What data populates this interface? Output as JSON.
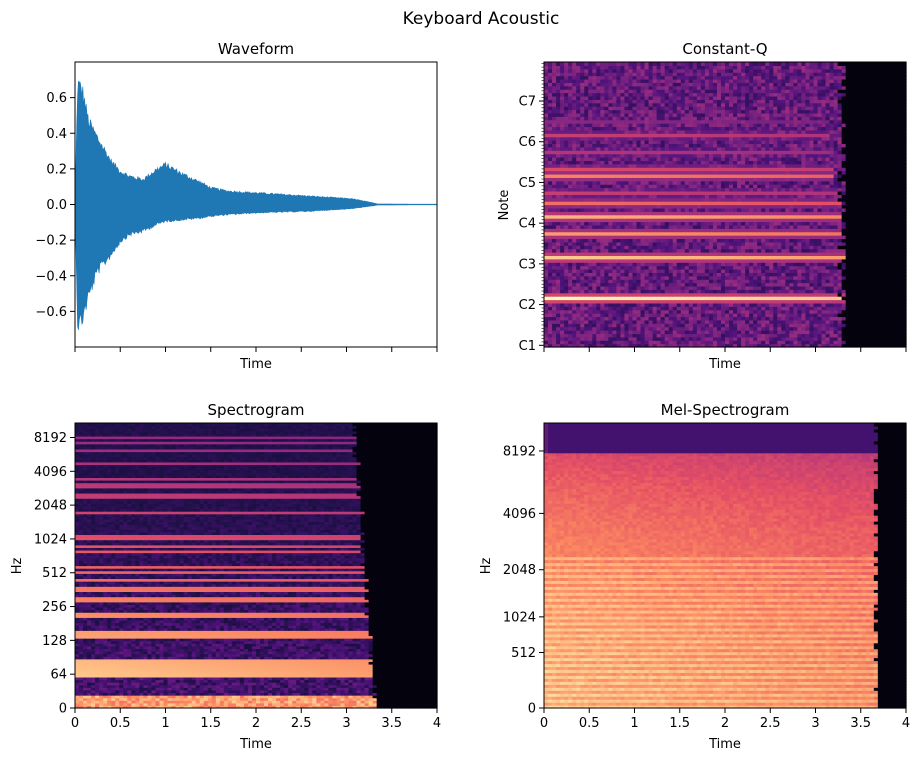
{
  "suptitle": "Keyboard Acoustic",
  "colors": {
    "waveform": "#1f77b4",
    "colormap": "magma",
    "background": "#ffffff",
    "axis": "#000000"
  },
  "chart_data": [
    {
      "id": "waveform",
      "type": "area",
      "title": "Waveform",
      "xlabel": "Time",
      "ylabel": "",
      "xlim": [
        0,
        4
      ],
      "ylim": [
        -0.8,
        0.8
      ],
      "yticks": [
        -0.6,
        -0.4,
        -0.2,
        0.0,
        0.2,
        0.4,
        0.6
      ],
      "ytick_labels": [
        "−0.6",
        "−0.4",
        "−0.2",
        "0.0",
        "0.2",
        "0.4",
        "0.6"
      ],
      "xticks": [
        0,
        0.5,
        1,
        1.5,
        2,
        2.5,
        3,
        3.5,
        4
      ],
      "xtick_labels_shown": false,
      "envelope": {
        "time": [
          0,
          0.03,
          0.08,
          0.15,
          0.25,
          0.4,
          0.5,
          0.6,
          0.75,
          0.9,
          1.0,
          1.2,
          1.4,
          1.5,
          1.7,
          2.0,
          2.3,
          2.6,
          2.9,
          3.05,
          3.2,
          3.35,
          4.0
        ],
        "upper": [
          0.0,
          0.73,
          0.69,
          0.5,
          0.4,
          0.26,
          0.2,
          0.17,
          0.15,
          0.21,
          0.24,
          0.18,
          0.13,
          0.1,
          0.08,
          0.07,
          0.06,
          0.05,
          0.04,
          0.035,
          0.02,
          0.003,
          0.0
        ],
        "lower": [
          0.0,
          -0.73,
          -0.69,
          -0.55,
          -0.4,
          -0.3,
          -0.22,
          -0.18,
          -0.16,
          -0.12,
          -0.1,
          -0.09,
          -0.08,
          -0.07,
          -0.06,
          -0.05,
          -0.045,
          -0.04,
          -0.03,
          -0.025,
          -0.015,
          -0.003,
          0.0
        ]
      }
    },
    {
      "id": "cqt",
      "type": "heatmap",
      "title": "Constant-Q",
      "xlabel": "Time",
      "ylabel": "Note",
      "xlim": [
        0,
        4
      ],
      "yticks": [
        "C1",
        "C2",
        "C3",
        "C4",
        "C5",
        "C6",
        "C7"
      ],
      "ytick_midi": [
        24,
        36,
        48,
        60,
        72,
        84,
        96
      ],
      "ylim_midi": [
        23.5,
        107.5
      ],
      "xticks": [
        0,
        0.5,
        1,
        1.5,
        2,
        2.5,
        3,
        3.5,
        4
      ],
      "xtick_labels_shown": false,
      "decay_end_time": 3.35,
      "partials": [
        {
          "midi": 38,
          "strength": 1.0,
          "end": 3.35
        },
        {
          "midi": 50,
          "strength": 0.9,
          "end": 3.35
        },
        {
          "midi": 57,
          "strength": 0.8,
          "end": 3.3
        },
        {
          "midi": 62,
          "strength": 0.85,
          "end": 3.3
        },
        {
          "midi": 66,
          "strength": 0.7,
          "end": 3.3
        },
        {
          "midi": 69,
          "strength": 0.55,
          "end": 3.25
        },
        {
          "midi": 74,
          "strength": 0.75,
          "end": 3.2
        },
        {
          "midi": 76,
          "strength": 0.6,
          "end": 3.2
        },
        {
          "midi": 81,
          "strength": 0.5,
          "end": 3.15
        },
        {
          "midi": 86,
          "strength": 0.55,
          "end": 3.15
        },
        {
          "midi": 90,
          "strength": 0.4,
          "end": 3.1
        }
      ]
    },
    {
      "id": "spectrogram",
      "type": "heatmap",
      "title": "Spectrogram",
      "xlabel": "Time",
      "ylabel": "Hz",
      "xlim": [
        0,
        4
      ],
      "yscale": "log-like",
      "yticks": [
        0,
        64,
        128,
        256,
        512,
        1024,
        2048,
        4096,
        8192
      ],
      "ytick_labels": [
        "0",
        "64",
        "128",
        "256",
        "512",
        "1024",
        "2048",
        "4096",
        "8192"
      ],
      "xticks": [
        0,
        0.5,
        1,
        1.5,
        2,
        2.5,
        3,
        3.5,
        4
      ],
      "xtick_labels": [
        "0",
        "0.5",
        "1",
        "1.5",
        "2",
        "2.5",
        "3",
        "3.5",
        "4"
      ],
      "decay_end_time": 3.35,
      "harmonics_fundamental_hz": 73.4,
      "harmonic_count": 80
    },
    {
      "id": "mel",
      "type": "heatmap",
      "title": "Mel-Spectrogram",
      "xlabel": "Time",
      "ylabel": "Hz",
      "xlim": [
        0,
        4
      ],
      "yscale": "mel",
      "yticks": [
        0,
        512,
        1024,
        2048,
        4096,
        8192
      ],
      "ytick_labels": [
        "0",
        "512",
        "1024",
        "2048",
        "4096",
        "8192"
      ],
      "xticks": [
        0,
        0.5,
        1,
        1.5,
        2,
        2.5,
        3,
        3.5,
        4
      ],
      "xtick_labels": [
        "0",
        "0.5",
        "1",
        "1.5",
        "2",
        "2.5",
        "3",
        "3.5",
        "4"
      ],
      "decay_end_time": 3.7,
      "upper_cutoff_hz": 8000
    }
  ]
}
